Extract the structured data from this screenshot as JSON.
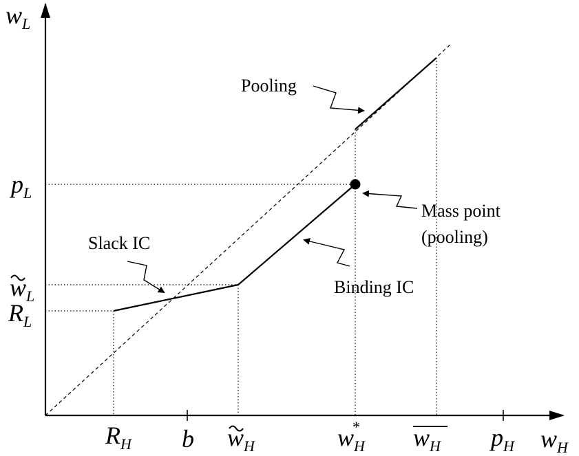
{
  "axes": {
    "x": {
      "base": "w",
      "sub": "H"
    },
    "y": {
      "base": "w",
      "sub": "L"
    }
  },
  "x_ticks": [
    {
      "id": "RH",
      "base": "R",
      "sub": "H",
      "accent": ""
    },
    {
      "id": "b",
      "base": "b",
      "sub": "",
      "accent": ""
    },
    {
      "id": "wH-tilde",
      "base": "w",
      "sub": "H",
      "accent": "tilde"
    },
    {
      "id": "wH-star",
      "base": "w",
      "sub": "H",
      "accent": "star"
    },
    {
      "id": "wH-bar",
      "base": "w",
      "sub": "H",
      "accent": "bar"
    },
    {
      "id": "pH",
      "base": "p",
      "sub": "H",
      "accent": ""
    }
  ],
  "y_ticks": [
    {
      "id": "pL",
      "base": "p",
      "sub": "L",
      "accent": ""
    },
    {
      "id": "wL-tilde",
      "base": "w",
      "sub": "L",
      "accent": "tilde"
    },
    {
      "id": "RL",
      "base": "R",
      "sub": "L",
      "accent": ""
    }
  ],
  "annotations": {
    "pooling": "Pooling",
    "slack_ic": "Slack IC",
    "binding_ic": "Binding IC",
    "mass_point_line1": "Mass point",
    "mass_point_line2": "(pooling)"
  }
}
